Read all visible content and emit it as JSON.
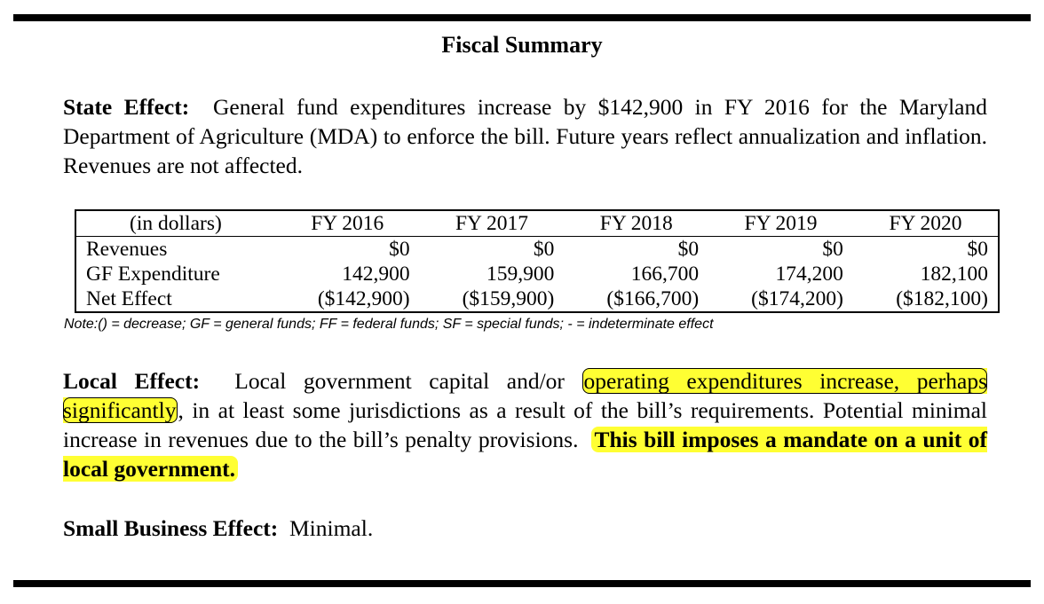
{
  "title": "Fiscal Summary",
  "state_effect": {
    "label": "State Effect:",
    "text": "General fund expenditures increase by $142,900 in FY 2016 for the Maryland Department of Agriculture (MDA) to enforce the bill.  Future years reflect annualization and inflation.  Revenues are not affected."
  },
  "fiscal_table": {
    "headers": [
      "(in dollars)",
      "FY 2016",
      "FY 2017",
      "FY 2018",
      "FY 2019",
      "FY 2020"
    ],
    "rows": [
      {
        "label": "Revenues",
        "values": [
          "$0",
          "$0",
          "$0",
          "$0",
          "$0"
        ]
      },
      {
        "label": "GF Expenditure",
        "values": [
          "142,900",
          "159,900",
          "166,700",
          "174,200",
          "182,100"
        ]
      },
      {
        "label": "Net Effect",
        "values": [
          "($142,900)",
          "($159,900)",
          "($166,700)",
          "($174,200)",
          "($182,100)"
        ]
      }
    ],
    "note": "Note:() = decrease; GF = general funds; FF = federal funds; SF = special funds; - = indeterminate effect"
  },
  "local_effect": {
    "label": "Local Effect:",
    "text_before": "Local government capital and/or",
    "highlight_1": "operating expenditures increase, perhaps significantly",
    "text_middle": ", in at least some jurisdictions as a result of the bill’s requirements.  Potential minimal increase in revenues due to the bill’s penalty provisions.",
    "highlight_2": "This bill imposes a mandate on a unit of local government."
  },
  "small_business_effect": {
    "label": "Small Business Effect:",
    "text": "Minimal."
  },
  "colors": {
    "highlight": "#ffff33",
    "text": "#000000"
  }
}
